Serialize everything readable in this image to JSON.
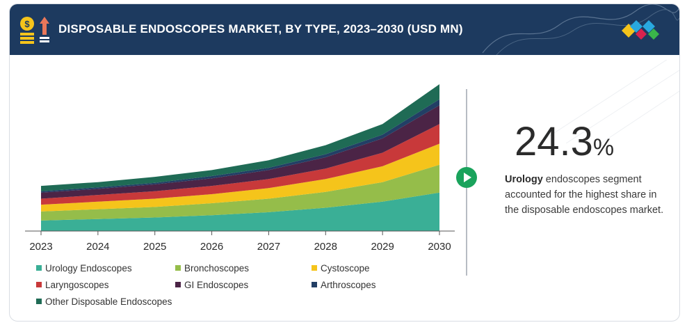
{
  "header": {
    "title": "DISPOSABLE ENDOSCOPES MARKET, BY TYPE, 2023–2030 (USD MN)"
  },
  "highlight": {
    "value": "24.3",
    "unit": "%",
    "bold_word": "Urology",
    "description": " endoscopes segment accounted for the highest share in the disposable endoscopes market."
  },
  "colors": {
    "header_bg": "#1d3a5f",
    "play_button": "#1aa35c"
  },
  "chart_data": {
    "type": "area",
    "stacked": true,
    "title": "DISPOSABLE ENDOSCOPES MARKET, BY TYPE, 2023–2030 (USD MN)",
    "categories": [
      "2023",
      "2024",
      "2025",
      "2026",
      "2027",
      "2028",
      "2029",
      "2030"
    ],
    "series": [
      {
        "name": "Urology Endoscopes",
        "color": "#3aaf96",
        "values": [
          14,
          16,
          18,
          21,
          25,
          31,
          39,
          51
        ]
      },
      {
        "name": "Bronchoscopes",
        "color": "#95bd4a",
        "values": [
          12,
          13,
          14,
          16,
          18,
          21,
          26,
          37
        ]
      },
      {
        "name": "Cystoscope",
        "color": "#f5c41b",
        "values": [
          9,
          10,
          11,
          12,
          14,
          17,
          21,
          28
        ]
      },
      {
        "name": "Laryngoscopes",
        "color": "#c8393a",
        "values": [
          8,
          9,
          10,
          11,
          12,
          14,
          18,
          26
        ]
      },
      {
        "name": "GI Endoscopes",
        "color": "#4b2446",
        "values": [
          8,
          8,
          9,
          10,
          12,
          15,
          19,
          25
        ]
      },
      {
        "name": "Arthroscopes",
        "color": "#223f65",
        "values": [
          2,
          2,
          2,
          3,
          3,
          4,
          5,
          8
        ]
      },
      {
        "name": "Other Disposable Endoscopes",
        "color": "#1f6b55",
        "values": [
          7,
          7,
          8,
          8,
          10,
          12,
          14,
          20
        ]
      }
    ],
    "legend_position": "bottom",
    "grid": false
  }
}
